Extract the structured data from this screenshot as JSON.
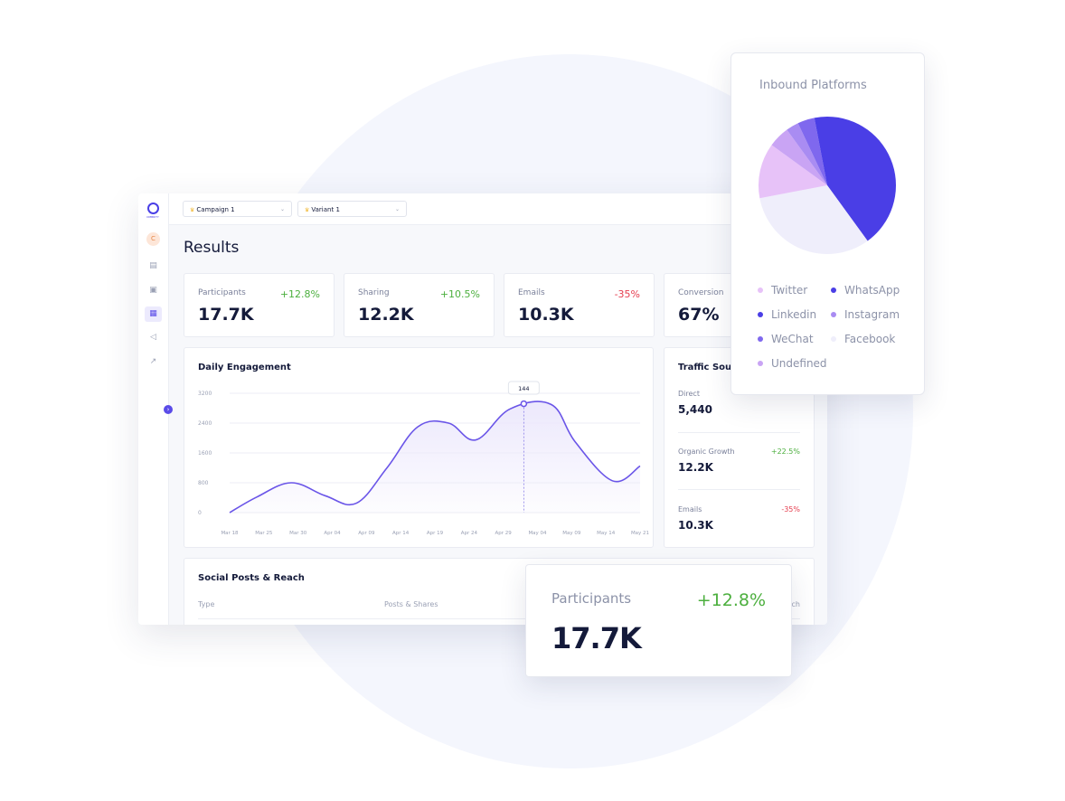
{
  "topbar": {
    "campaign_label": "Campaign 1",
    "variant_label": "Variant 1"
  },
  "sidebar": {
    "logo_text": "OMBRITY",
    "avatar_initial": "C"
  },
  "page": {
    "title": "Results"
  },
  "stats": [
    {
      "label": "Participants",
      "value": "17.7K",
      "change": "+12.8%",
      "trend": "up"
    },
    {
      "label": "Sharing",
      "value": "12.2K",
      "change": "+10.5%",
      "trend": "up"
    },
    {
      "label": "Emails",
      "value": "10.3K",
      "change": "-35%",
      "trend": "down"
    },
    {
      "label": "Conversion",
      "value": "67%"
    }
  ],
  "daily_engagement": {
    "title": "Daily Engagement",
    "tooltip_value": "144"
  },
  "traffic_sources": {
    "title": "Traffic Sources",
    "items": [
      {
        "label": "Direct",
        "value": "5,440",
        "change": ""
      },
      {
        "label": "Organic Growth",
        "value": "12.2K",
        "change": "+22.5%"
      },
      {
        "label": "Emails",
        "value": "10.3K",
        "change": "-35%"
      }
    ]
  },
  "social_posts": {
    "title": "Social Posts & Reach",
    "columns": [
      "Type",
      "Posts & Shares",
      "Reach"
    ]
  },
  "floating_stat": {
    "label": "Participants",
    "change": "+12.8%",
    "value": "17.7K"
  },
  "chart_data": [
    {
      "type": "line",
      "title": "Daily Engagement",
      "categories": [
        "Mar 18",
        "Mar 25",
        "Mar 30",
        "Apr 04",
        "Apr 09",
        "Apr 14",
        "Apr 19",
        "Apr 24",
        "Apr 29",
        "May 04",
        "May 09",
        "May 14",
        "May 21"
      ],
      "y_ticks": [
        "3200",
        "2400",
        "1600",
        "800",
        "0"
      ],
      "ylim": [
        0,
        3200
      ],
      "series": [
        {
          "points": [
            [
              0,
              0
            ],
            [
              0.8,
              420
            ],
            [
              1.8,
              800
            ],
            [
              2.8,
              450
            ],
            [
              3.7,
              250
            ],
            [
              4.6,
              1200
            ],
            [
              5.5,
              2300
            ],
            [
              6.4,
              2400
            ],
            [
              7.2,
              1950
            ],
            [
              8.2,
              2780
            ],
            [
              9.4,
              2900
            ],
            [
              10.1,
              1900
            ],
            [
              11.2,
              850
            ],
            [
              12,
              1250
            ]
          ]
        }
      ],
      "highlight": {
        "x": 8.6,
        "value": "144"
      },
      "grid": true,
      "colors": {
        "line": "#6a55e8",
        "fill": "#ece8fc"
      }
    },
    {
      "type": "pie",
      "title": "Inbound Platforms",
      "slices": [
        {
          "label": "WhatsApp",
          "value": 40,
          "color": "#4a3ee6"
        },
        {
          "label": "Facebook",
          "value": 32,
          "color": "#efeefb"
        },
        {
          "label": "Twitter",
          "value": 13,
          "color": "#e7c2f8"
        },
        {
          "label": "Undefined",
          "value": 5,
          "color": "#c9a4f4"
        },
        {
          "label": "Instagram",
          "value": 3,
          "color": "#a98cf2"
        },
        {
          "label": "WeChat",
          "value": 4,
          "color": "#7f68ee"
        },
        {
          "label": "Linkedin",
          "value": 3,
          "color": "#4a3ee6"
        }
      ],
      "legend": [
        {
          "label": "Twitter",
          "color": "#e7c2f8"
        },
        {
          "label": "WhatsApp",
          "color": "#4a3ee6"
        },
        {
          "label": "Linkedin",
          "color": "#4a3ee6"
        },
        {
          "label": "Instagram",
          "color": "#a98cf2"
        },
        {
          "label": "WeChat",
          "color": "#7f68ee"
        },
        {
          "label": "Facebook",
          "color": "#efeefb"
        },
        {
          "label": "Undefined",
          "color": "#c9a4f4"
        }
      ]
    }
  ]
}
